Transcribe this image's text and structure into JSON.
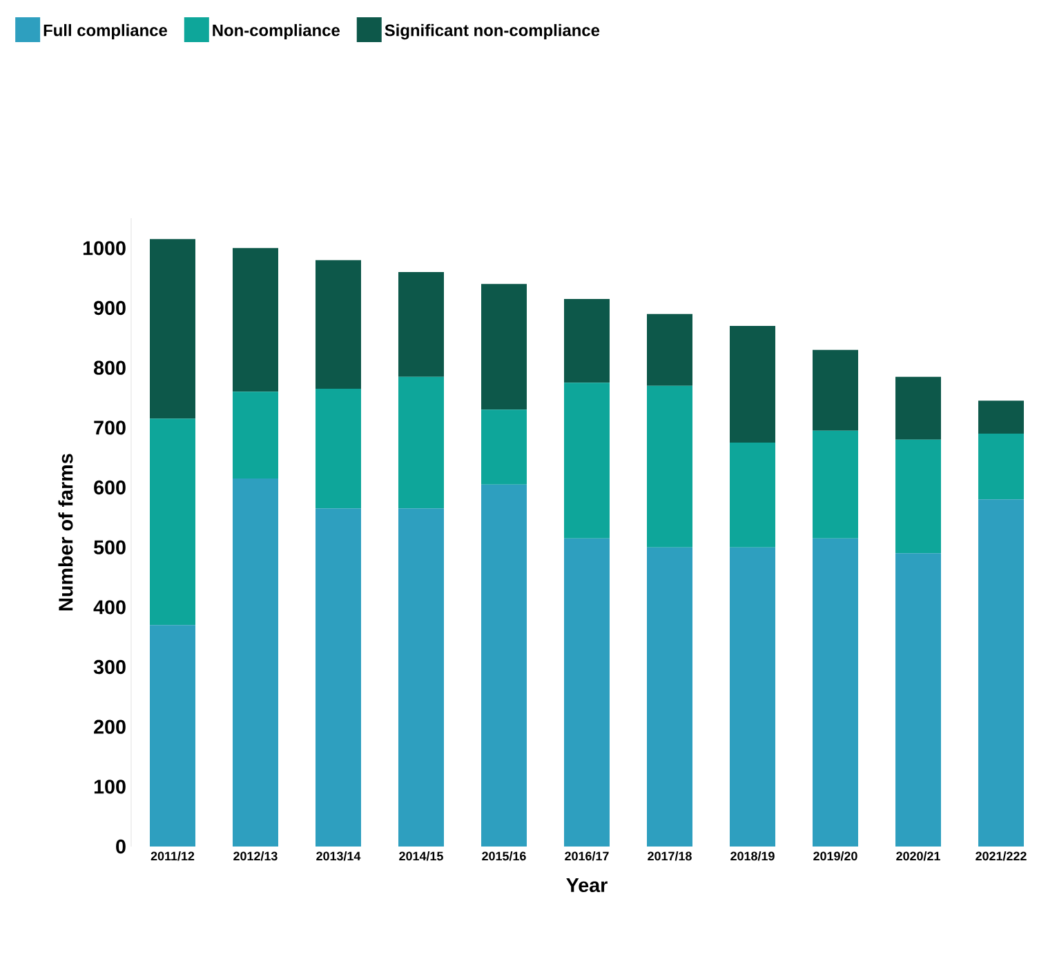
{
  "chart_data": {
    "type": "bar",
    "stacked": true,
    "xlabel": "Year",
    "ylabel": "Number of farms",
    "categories": [
      "2011/12",
      "2012/13",
      "2013/14",
      "2014/15",
      "2015/16",
      "2016/17",
      "2017/18",
      "2018/19",
      "2019/20",
      "2020/21",
      "2021/222"
    ],
    "series": [
      {
        "name": "Full compliance",
        "color": "#2e9fbf",
        "values": [
          370,
          615,
          565,
          565,
          605,
          515,
          500,
          500,
          515,
          490,
          580
        ]
      },
      {
        "name": "Non-compliance",
        "color": "#0ea69a",
        "values": [
          345,
          145,
          200,
          220,
          125,
          260,
          270,
          175,
          180,
          190,
          110
        ]
      },
      {
        "name": "Significant non-compliance",
        "color": "#0d584a",
        "values": [
          300,
          240,
          215,
          175,
          210,
          140,
          120,
          195,
          135,
          105,
          55
        ]
      }
    ],
    "ylim": [
      0,
      1050
    ],
    "yticks": [
      0,
      100,
      200,
      300,
      400,
      500,
      600,
      700,
      800,
      900,
      1000
    ],
    "legend": "top left",
    "grid": false
  }
}
